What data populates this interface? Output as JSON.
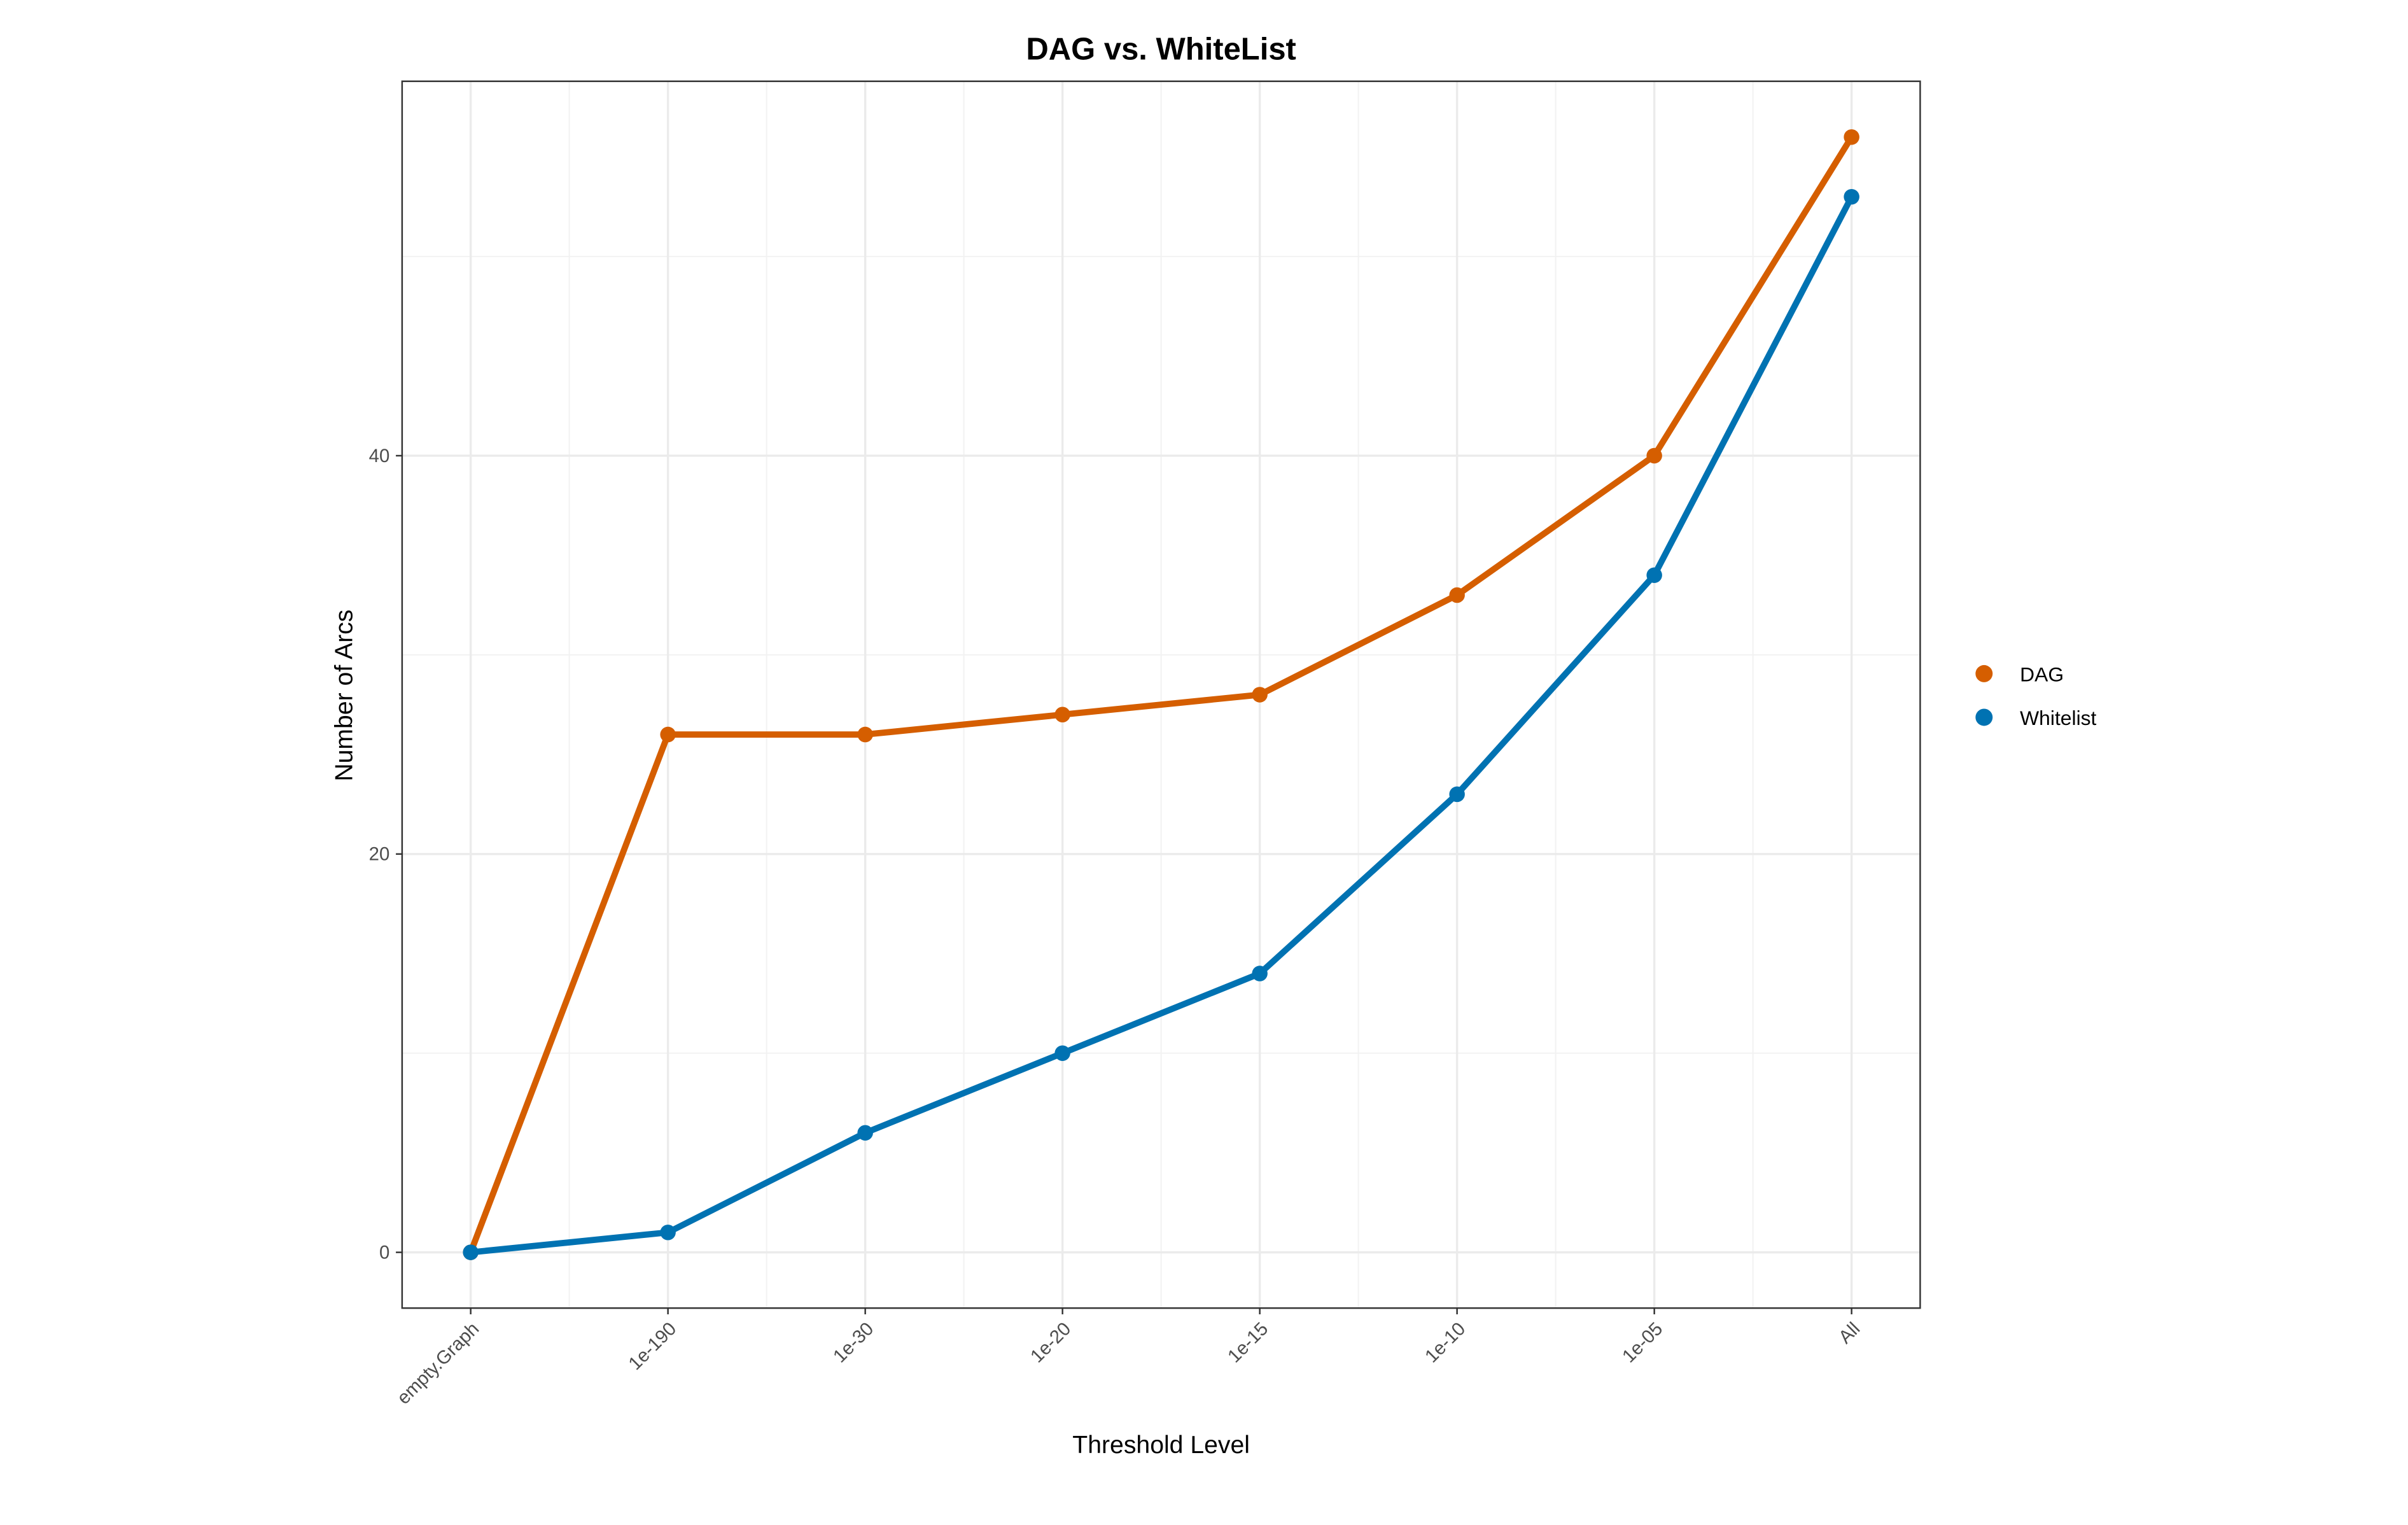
{
  "chart_data": {
    "type": "line",
    "title": "DAG vs. WhiteList",
    "x_label": "Threshold Level",
    "y_label": "Number of Arcs",
    "categories": [
      "empty.Graph",
      "1e-190",
      "1e-30",
      "1e-20",
      "1e-15",
      "1e-10",
      "1e-05",
      "All"
    ],
    "series": [
      {
        "name": "DAG",
        "color": "#D55E00",
        "values": [
          0,
          26,
          26,
          27,
          28,
          33,
          40,
          56
        ]
      },
      {
        "name": "Whitelist",
        "color": "#0072B2",
        "values": [
          0,
          1,
          6,
          10,
          14,
          23,
          34,
          53
        ]
      }
    ],
    "ylim": [
      -2.8,
      58.8
    ],
    "yticks": [
      0,
      20,
      40
    ],
    "grid": true,
    "legend": "right"
  }
}
